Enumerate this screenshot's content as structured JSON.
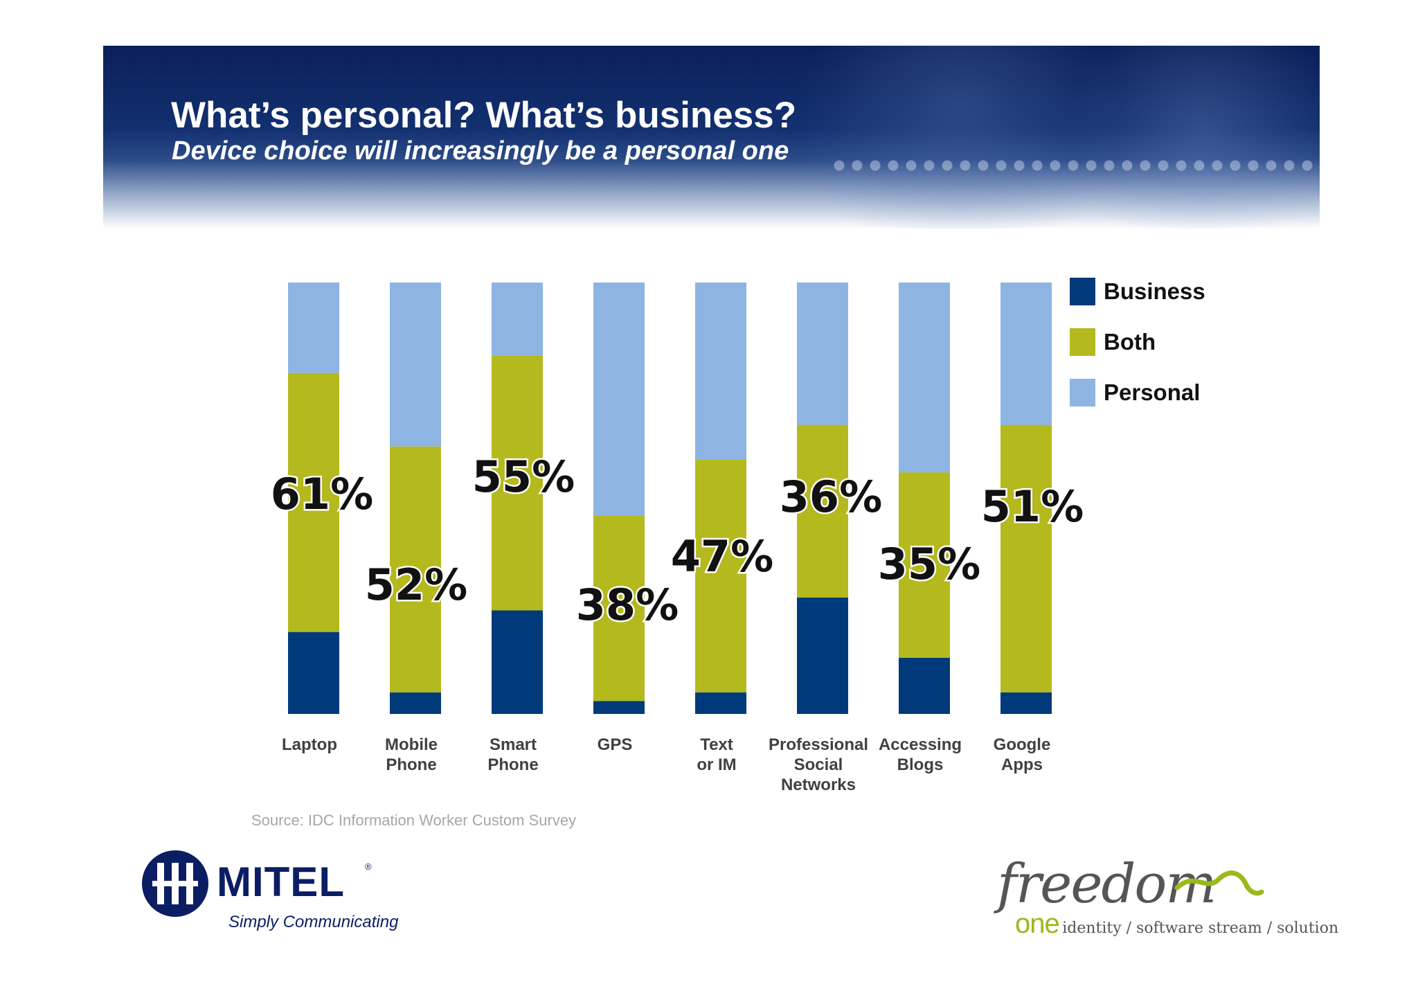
{
  "header": {
    "title": "What’s personal? What’s business?",
    "subtitle": "Device choice will increasingly be a personal one"
  },
  "chart_data": {
    "type": "bar",
    "stacked": true,
    "orientation": "vertical",
    "categories": [
      "Laptop",
      "Mobile Phone",
      "Smart Phone",
      "GPS",
      "Text or IM",
      "Professional Social Networks",
      "Accessing Blogs",
      "Google Apps"
    ],
    "category_label_lines": [
      [
        "Laptop"
      ],
      [
        "Mobile",
        "Phone"
      ],
      [
        "Smart",
        "Phone"
      ],
      [
        "GPS"
      ],
      [
        "Text",
        "or IM"
      ],
      [
        "Professional",
        "Social",
        "Networks"
      ],
      [
        "Accessing",
        "Blogs"
      ],
      [
        "Google",
        "Apps"
      ]
    ],
    "series": [
      {
        "name": "Business",
        "color": "#003a7a",
        "values": [
          19,
          5,
          24,
          3,
          5,
          27,
          13,
          5
        ]
      },
      {
        "name": "Both",
        "color": "#b4b91e",
        "values": [
          60,
          57,
          59,
          43,
          54,
          40,
          43,
          62
        ]
      },
      {
        "name": "Personal",
        "color": "#8db4e3",
        "values": [
          21,
          38,
          17,
          54,
          41,
          33,
          44,
          33
        ]
      }
    ],
    "annotations": [
      "61%",
      "52%",
      "55%",
      "38%",
      "47%",
      "36%",
      "35%",
      "51%"
    ],
    "ylim": [
      0,
      100
    ],
    "legend": "right",
    "grid": false
  },
  "source": "Source: IDC Information Worker Custom Survey",
  "logos": {
    "mitel": {
      "name": "MITEL",
      "registered": "®",
      "tagline": "Simply Communicating"
    },
    "freedom": {
      "word": "freedom",
      "one": "one",
      "tagline": "identity / software stream / solution"
    }
  }
}
